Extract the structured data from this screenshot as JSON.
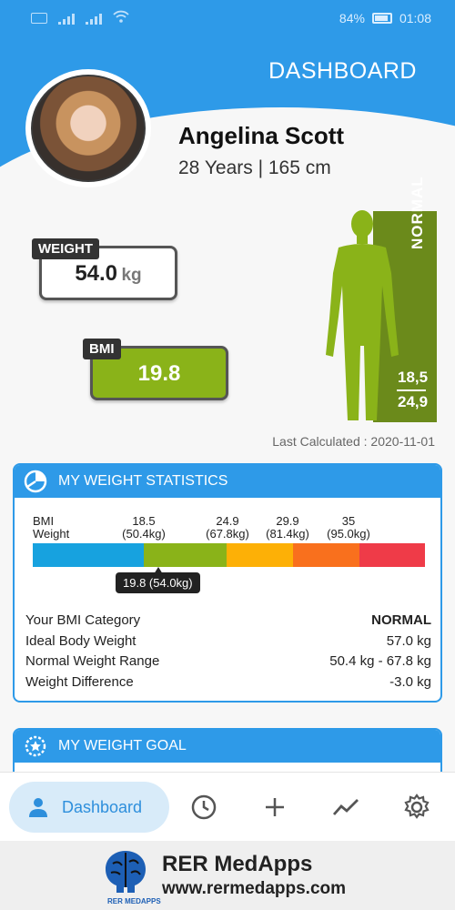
{
  "status_bar": {
    "left_icons": [
      "volte-icon",
      "signal-1-icon",
      "signal-2-icon",
      "wifi-icon"
    ],
    "battery": "84%",
    "time": "01:08"
  },
  "header": {
    "title": "DASHBOARD"
  },
  "profile": {
    "name": "Angelina Scott",
    "meta": "28 Years | 165 cm"
  },
  "weight_card": {
    "tag": "WEIGHT",
    "value": "54.0",
    "unit": "kg"
  },
  "bmi_card": {
    "tag": "BMI",
    "value": "19.8"
  },
  "body_indicator": {
    "category": "NORMAL",
    "range_low": "18,5",
    "range_high": "24,9",
    "color": "#6b8a1b"
  },
  "last_calculated": "Last Calculated : 2020-11-01",
  "stats": {
    "title": "MY WEIGHT STATISTICS",
    "scale_row_labels": {
      "bmi": "BMI",
      "weight": "Weight"
    },
    "thresholds": [
      {
        "bmi": "18.5",
        "weight": "(50.4kg)"
      },
      {
        "bmi": "24.9",
        "weight": "(67.8kg)"
      },
      {
        "bmi": "29.9",
        "weight": "(81.4kg)"
      },
      {
        "bmi": "35",
        "weight": "(95.0kg)"
      }
    ],
    "segment_colors": [
      "#17a2df",
      "#8ab319",
      "#fdb006",
      "#f9701d",
      "#ef3b48"
    ],
    "marker": "19.8 (54.0kg)",
    "rows": [
      {
        "label": "Your BMI Category",
        "value": "NORMAL"
      },
      {
        "label": "Ideal Body Weight",
        "value": "57.0 kg"
      },
      {
        "label": "Normal Weight Range",
        "value": "50.4 kg - 67.8 kg"
      },
      {
        "label": "Weight Difference",
        "value": "-3.0 kg"
      }
    ]
  },
  "goal": {
    "title": "MY WEIGHT GOAL"
  },
  "nav": {
    "dashboard": "Dashboard",
    "items": [
      "history-icon",
      "add-icon",
      "trend-icon",
      "settings-icon"
    ]
  },
  "ad": {
    "title": "RER MedApps",
    "url": "www.rermedapps.com",
    "logo_text": "RER MEDAPPS"
  },
  "colors": {
    "primary": "#2e9ae8",
    "bmi_green": "#8ab319",
    "nav_active_bg": "#d8ebf9"
  }
}
